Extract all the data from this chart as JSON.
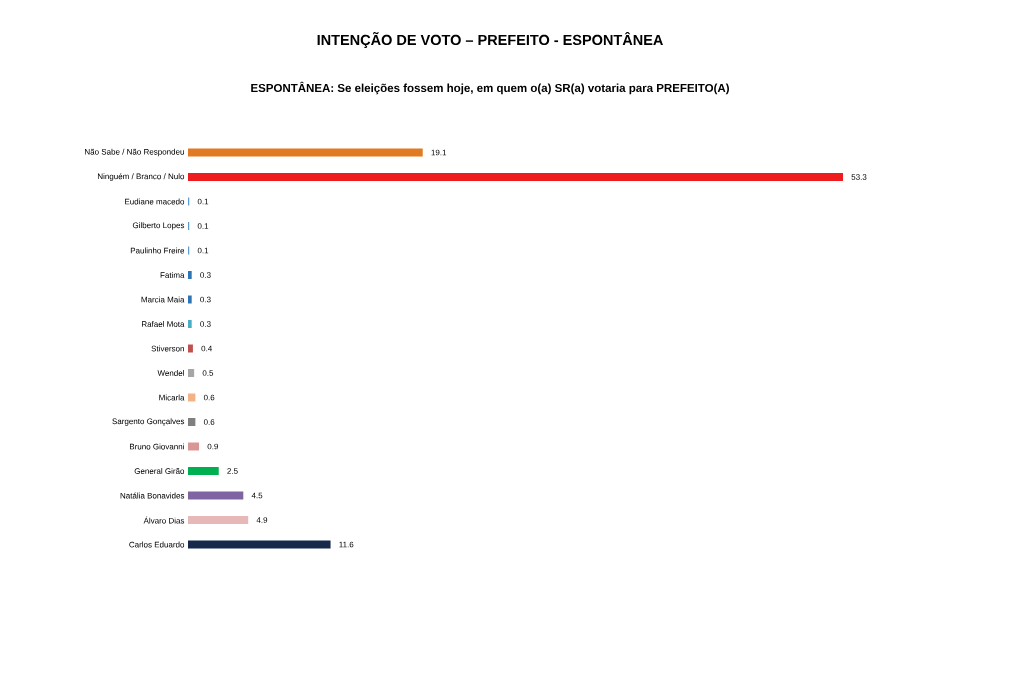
{
  "chart_data": {
    "type": "bar",
    "orientation": "horizontal",
    "title": "INTENÇÃO DE VOTO – PREFEITO - ESPONTÂNEA",
    "subtitle": "ESPONTÂNEA: Se eleições fossem hoje, em quem o(a) SR(a) votaria para PREFEITO(A)",
    "categories": [
      "Não Sabe / Não Respondeu",
      "Ninguém / Branco / Nulo",
      "Eudiane macedo",
      "Gilberto Lopes",
      "Paulinho Freire",
      "Fatima",
      "Marcia Maia",
      "Rafael Mota",
      "Stiverson",
      "Wendel",
      "Micarla",
      "Sargento Gonçalves",
      "Bruno Giovanni",
      "General Girão",
      "Natália Bonavides",
      "Álvaro Dias",
      "Carlos Eduardo"
    ],
    "values": [
      19.1,
      53.3,
      0.1,
      0.1,
      0.1,
      0.3,
      0.3,
      0.3,
      0.4,
      0.5,
      0.6,
      0.6,
      0.9,
      2.5,
      4.5,
      4.9,
      11.6
    ],
    "colors": [
      "#e07b24",
      "#ee1c1c",
      "#5b9bd5",
      "#5b9bd5",
      "#5b9bd5",
      "#2e75b6",
      "#2e75b6",
      "#4bacc6",
      "#c0504d",
      "#a6a6a6",
      "#f4b183",
      "#7f7f7f",
      "#d99694",
      "#00b050",
      "#8064a2",
      "#e6b9b8",
      "#17294a"
    ],
    "data_labels": true
  }
}
